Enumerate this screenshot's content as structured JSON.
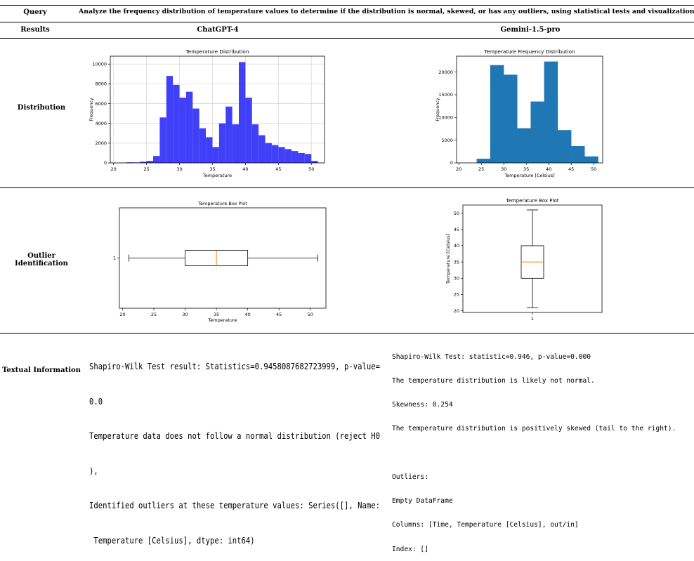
{
  "table": {
    "query_label": "Query",
    "query_text": "Analyze the frequency distribution of temperature values to determine if the distribution is normal, skewed, or has any outliers, using statistical tests and visualizations like histograms and box plots.",
    "results_label": "Results",
    "model_left": "ChatGPT-4",
    "model_right": "Gemini-1.5-pro",
    "row_distribution": "Distribution",
    "row_outlier": "Outlier Identification",
    "row_textual": "Textual Information"
  },
  "charts": {
    "gpt_hist_title": "Temperature Distribution",
    "gpt_hist_xlabel": "Temperature",
    "gpt_hist_ylabel": "Frequency",
    "gem_hist_title": "Temperature Frequency Distribution",
    "gem_hist_xlabel": "Temperature [Celsius]",
    "gem_hist_ylabel": "Frequency",
    "gpt_box_title": "Temperature Box Plot",
    "gpt_box_xlabel": "Temperature",
    "gpt_box_category": "1",
    "gem_box_title": "Temperature Box Plot",
    "gem_box_ylabel": "Temperature [Celsius]",
    "gem_box_category": "1"
  },
  "chart_data": [
    {
      "type": "bar",
      "title": "Temperature Distribution",
      "xlabel": "Temperature",
      "ylabel": "Frequency",
      "xlim": [
        19.5,
        52
      ],
      "ylim": [
        0,
        10800
      ],
      "xticks": [
        20,
        25,
        30,
        35,
        40,
        45,
        50
      ],
      "yticks": [
        0,
        2000,
        4000,
        6000,
        8000,
        10000
      ],
      "grid": true,
      "color": "#4040f8",
      "bin_start": 21.0,
      "bin_width": 1.0,
      "values": [
        30,
        60,
        50,
        120,
        200,
        700,
        4600,
        8800,
        7900,
        6600,
        7200,
        5500,
        3500,
        2600,
        1600,
        4000,
        5700,
        3900,
        10200,
        6600,
        3900,
        2800,
        2000,
        1800,
        1600,
        1400,
        1200,
        1000,
        900,
        200
      ]
    },
    {
      "type": "bar",
      "title": "Temperature Frequency Distribution",
      "xlabel": "Temperature [Celsius]",
      "ylabel": "Frequency",
      "xlim": [
        19.5,
        52
      ],
      "ylim": [
        0,
        23500
      ],
      "xticks": [
        20,
        25,
        30,
        35,
        40,
        45,
        50
      ],
      "yticks": [
        0,
        5000,
        10000,
        15000,
        20000
      ],
      "grid": false,
      "color": "#1f77b4",
      "bin_start": 24.0,
      "bin_width": 3.0,
      "values": [
        900,
        21500,
        19400,
        7600,
        13500,
        22300,
        7200,
        3700,
        1400
      ]
    },
    {
      "type": "box",
      "orientation": "horizontal",
      "title": "Temperature Box Plot",
      "xlabel": "Temperature",
      "category": "1",
      "xlim": [
        19.5,
        52.5
      ],
      "xticks": [
        20,
        25,
        30,
        35,
        40,
        45,
        50
      ],
      "min": 21,
      "q1": 30,
      "median": 35,
      "q3": 40,
      "max": 51.2
    },
    {
      "type": "box",
      "orientation": "vertical",
      "title": "Temperature Box Plot",
      "ylabel": "Temperature [Celsius]",
      "category": "1",
      "ylim": [
        19.5,
        52.5
      ],
      "yticks": [
        20,
        25,
        30,
        35,
        40,
        45,
        50
      ],
      "min": 21,
      "q1": 30,
      "median": 35,
      "q3": 40,
      "max": 51
    }
  ],
  "text_left": [
    "Shapiro-Wilk Test result: Statistics=0.9458087682723999, p-value=",
    "0.0",
    "Temperature data does not follow a normal distribution (reject H0",
    "),",
    "Identified outliers at these temperature values: Series([], Name:",
    " Temperature [Celsius], dtype: int64)"
  ],
  "text_right": [
    "Shapiro-Wilk Test: statistic=0.946, p-value=0.000",
    "The temperature distribution is likely not normal.",
    "Skewness: 0.254",
    "The temperature distribution is positively skewed (tail to the right).",
    "",
    "Outliers:",
    "Empty DataFrame",
    "Columns: [Time, Temperature [Celsius], out/in]",
    "Index: []"
  ]
}
